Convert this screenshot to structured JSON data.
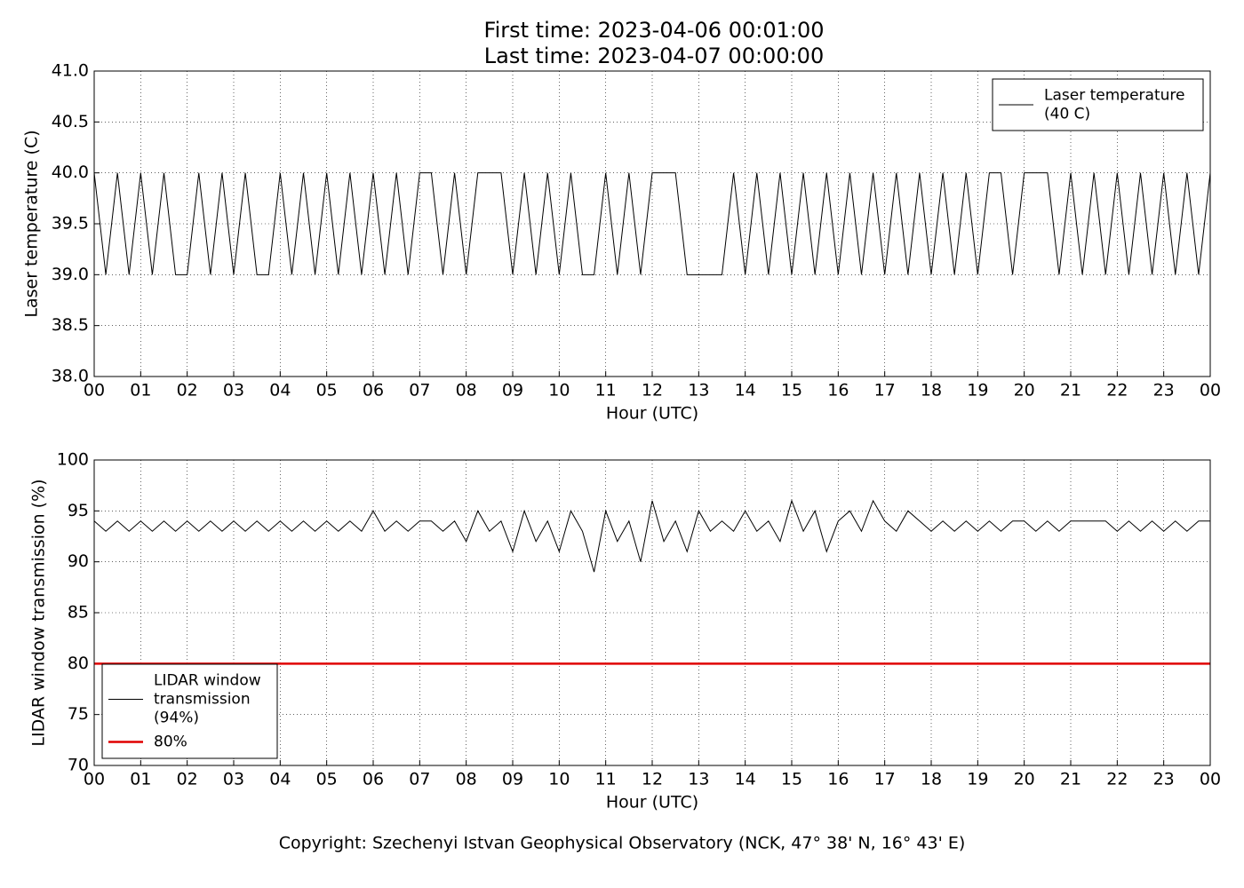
{
  "chart_data": [
    {
      "type": "line",
      "title": [
        "First time: 2023-04-06 00:01:00",
        "Last time: 2023-04-07 00:00:00"
      ],
      "xlabel": "Hour (UTC)",
      "ylabel": "Laser temperature (C)",
      "xlim": [
        0,
        24
      ],
      "ylim": [
        38,
        41
      ],
      "xticks": [
        {
          "value": 0,
          "label": "00"
        },
        {
          "value": 1,
          "label": "01"
        },
        {
          "value": 2,
          "label": "02"
        },
        {
          "value": 3,
          "label": "03"
        },
        {
          "value": 4,
          "label": "04"
        },
        {
          "value": 5,
          "label": "05"
        },
        {
          "value": 6,
          "label": "06"
        },
        {
          "value": 7,
          "label": "07"
        },
        {
          "value": 8,
          "label": "08"
        },
        {
          "value": 9,
          "label": "09"
        },
        {
          "value": 10,
          "label": "10"
        },
        {
          "value": 11,
          "label": "11"
        },
        {
          "value": 12,
          "label": "12"
        },
        {
          "value": 13,
          "label": "13"
        },
        {
          "value": 14,
          "label": "14"
        },
        {
          "value": 15,
          "label": "15"
        },
        {
          "value": 16,
          "label": "16"
        },
        {
          "value": 17,
          "label": "17"
        },
        {
          "value": 18,
          "label": "18"
        },
        {
          "value": 19,
          "label": "19"
        },
        {
          "value": 20,
          "label": "20"
        },
        {
          "value": 21,
          "label": "21"
        },
        {
          "value": 22,
          "label": "22"
        },
        {
          "value": 23,
          "label": "23"
        },
        {
          "value": 24,
          "label": "00"
        }
      ],
      "yticks": [
        {
          "value": 38,
          "label": "38.0"
        },
        {
          "value": 38.5,
          "label": "38.5"
        },
        {
          "value": 39,
          "label": "39.0"
        },
        {
          "value": 39.5,
          "label": "39.5"
        },
        {
          "value": 40,
          "label": "40.0"
        },
        {
          "value": 40.5,
          "label": "40.5"
        },
        {
          "value": 41,
          "label": "41.0"
        }
      ],
      "grid": true,
      "legend": "upper right",
      "series": [
        {
          "name": "Laser temperature\n(40 C)",
          "color": "#000000",
          "x": [
            0,
            0.25,
            0.5,
            0.75,
            1,
            1.25,
            1.5,
            1.75,
            2,
            2.25,
            2.5,
            2.75,
            3,
            3.25,
            3.5,
            3.75,
            4,
            4.25,
            4.5,
            4.75,
            5,
            5.25,
            5.5,
            5.75,
            6,
            6.25,
            6.5,
            6.75,
            7,
            7.25,
            7.5,
            7.75,
            8,
            8.25,
            8.5,
            8.75,
            9,
            9.25,
            9.5,
            9.75,
            10,
            10.25,
            10.5,
            10.75,
            11,
            11.25,
            11.5,
            11.75,
            12,
            12.25,
            12.5,
            12.75,
            13,
            13.25,
            13.5,
            13.75,
            14,
            14.25,
            14.5,
            14.75,
            15,
            15.25,
            15.5,
            15.75,
            16,
            16.25,
            16.5,
            16.75,
            17,
            17.25,
            17.5,
            17.75,
            18,
            18.25,
            18.5,
            18.75,
            19,
            19.25,
            19.5,
            19.75,
            20,
            20.25,
            20.5,
            20.75,
            21,
            21.25,
            21.5,
            21.75,
            22,
            22.25,
            22.5,
            22.75,
            23,
            23.25,
            23.5,
            23.75,
            24
          ],
          "values": [
            40,
            39,
            40,
            39,
            40,
            39,
            40,
            39,
            39,
            40,
            39,
            40,
            39,
            40,
            39,
            39,
            40,
            39,
            40,
            39,
            40,
            39,
            40,
            39,
            40,
            39,
            40,
            39,
            40,
            40,
            39,
            40,
            39,
            40,
            40,
            40,
            39,
            40,
            39,
            40,
            39,
            40,
            39,
            39,
            40,
            39,
            40,
            39,
            40,
            40,
            40,
            39,
            39,
            39,
            39,
            40,
            39,
            40,
            39,
            40,
            39,
            40,
            39,
            40,
            39,
            40,
            39,
            40,
            39,
            40,
            39,
            40,
            39,
            40,
            39,
            40,
            39,
            40,
            40,
            39,
            40,
            40,
            40,
            39,
            40,
            39,
            40,
            39,
            40,
            39,
            40,
            39,
            40,
            39,
            40,
            39,
            40
          ]
        }
      ]
    },
    {
      "type": "line",
      "xlabel": "Hour (UTC)",
      "ylabel": "LIDAR window transmission (%)",
      "xlim": [
        0,
        24
      ],
      "ylim": [
        70,
        100
      ],
      "xticks": [
        {
          "value": 0,
          "label": "00"
        },
        {
          "value": 1,
          "label": "01"
        },
        {
          "value": 2,
          "label": "02"
        },
        {
          "value": 3,
          "label": "03"
        },
        {
          "value": 4,
          "label": "04"
        },
        {
          "value": 5,
          "label": "05"
        },
        {
          "value": 6,
          "label": "06"
        },
        {
          "value": 7,
          "label": "07"
        },
        {
          "value": 8,
          "label": "08"
        },
        {
          "value": 9,
          "label": "09"
        },
        {
          "value": 10,
          "label": "10"
        },
        {
          "value": 11,
          "label": "11"
        },
        {
          "value": 12,
          "label": "12"
        },
        {
          "value": 13,
          "label": "13"
        },
        {
          "value": 14,
          "label": "14"
        },
        {
          "value": 15,
          "label": "15"
        },
        {
          "value": 16,
          "label": "16"
        },
        {
          "value": 17,
          "label": "17"
        },
        {
          "value": 18,
          "label": "18"
        },
        {
          "value": 19,
          "label": "19"
        },
        {
          "value": 20,
          "label": "20"
        },
        {
          "value": 21,
          "label": "21"
        },
        {
          "value": 22,
          "label": "22"
        },
        {
          "value": 23,
          "label": "23"
        },
        {
          "value": 24,
          "label": "00"
        }
      ],
      "yticks": [
        70,
        75,
        80,
        85,
        90,
        95,
        100
      ],
      "grid": true,
      "legend": "lower left",
      "series": [
        {
          "name": "LIDAR window\ntransmission\n(94%)",
          "color": "#000000",
          "width": 1,
          "x": [
            0,
            0.25,
            0.5,
            0.75,
            1,
            1.25,
            1.5,
            1.75,
            2,
            2.25,
            2.5,
            2.75,
            3,
            3.25,
            3.5,
            3.75,
            4,
            4.25,
            4.5,
            4.75,
            5,
            5.25,
            5.5,
            5.75,
            6,
            6.25,
            6.5,
            6.75,
            7,
            7.25,
            7.5,
            7.75,
            8,
            8.25,
            8.5,
            8.75,
            9,
            9.25,
            9.5,
            9.75,
            10,
            10.25,
            10.5,
            10.75,
            11,
            11.25,
            11.5,
            11.75,
            12,
            12.25,
            12.5,
            12.75,
            13,
            13.25,
            13.5,
            13.75,
            14,
            14.25,
            14.5,
            14.75,
            15,
            15.25,
            15.5,
            15.75,
            16,
            16.25,
            16.5,
            16.75,
            17,
            17.25,
            17.5,
            17.75,
            18,
            18.25,
            18.5,
            18.75,
            19,
            19.25,
            19.5,
            19.75,
            20,
            20.25,
            20.5,
            20.75,
            21,
            21.25,
            21.5,
            21.75,
            22,
            22.25,
            22.5,
            22.75,
            23,
            23.25,
            23.5,
            23.75,
            24
          ],
          "values": [
            94,
            93,
            94,
            93,
            94,
            93,
            94,
            93,
            94,
            93,
            94,
            93,
            94,
            93,
            94,
            93,
            94,
            93,
            94,
            93,
            94,
            93,
            94,
            93,
            95,
            93,
            94,
            93,
            94,
            94,
            93,
            94,
            92,
            95,
            93,
            94,
            91,
            95,
            92,
            94,
            91,
            95,
            93,
            89,
            95,
            92,
            94,
            90,
            96,
            92,
            94,
            91,
            95,
            93,
            94,
            93,
            95,
            93,
            94,
            92,
            96,
            93,
            95,
            91,
            94,
            95,
            93,
            96,
            94,
            93,
            95,
            94,
            93,
            94,
            93,
            94,
            93,
            94,
            93,
            94,
            94,
            93,
            94,
            93,
            94,
            94,
            94,
            94,
            93,
            94,
            93,
            94,
            93,
            94,
            93,
            94,
            94
          ]
        },
        {
          "name": "80%",
          "color": "#e00000",
          "width": 2.5,
          "x": [
            0,
            24
          ],
          "values": [
            80,
            80
          ]
        }
      ]
    }
  ],
  "footer": "Copyright: Szechenyi Istvan Geophysical Observatory (NCK, 47° 38' N, 16° 43' E)"
}
